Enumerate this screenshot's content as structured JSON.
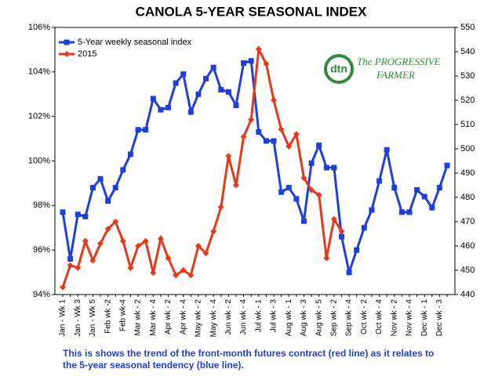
{
  "chart_data": {
    "type": "line",
    "title": "CANOLA 5-YEAR SEASONAL INDEX",
    "caption": [
      "This is shows the trend of the front-month futures contract (red line) as it relates to",
      "the 5-year seasonal tendency (blue line)."
    ],
    "logo": {
      "mark": "dtn",
      "line1": "The PROGRESSIVE",
      "line2": "FARMER"
    },
    "categories": [
      "Jan - Wk 1",
      null,
      "Jan - Wk 3",
      null,
      "Jan - Wk 5",
      null,
      "Feb wk -2",
      null,
      "Feb wk-4",
      null,
      "Mar wk - 2",
      null,
      "Mar wk - 4",
      null,
      "Apr wk - 2",
      null,
      "Apr wk - 4",
      null,
      "May wk - 2",
      null,
      "May wk - 4",
      null,
      "Jun wk - 2",
      null,
      "Jun wk - 4",
      null,
      "Jul wk - 1",
      null,
      "Jul wk - 3",
      null,
      "Aug wk - 1",
      null,
      "Aug wk - 3",
      null,
      "Aug wk - 5",
      null,
      "Sep wk - 2",
      null,
      "Sep wk - 4",
      null,
      "Oct wk - 2",
      null,
      "Oct wk - 4",
      null,
      "Nov wk - 2",
      null,
      "Nov wk - 4",
      null,
      "Dec wk - 1",
      null,
      "Dec wk - 3",
      null
    ],
    "series": [
      {
        "name": "5-Year weekly seasonal index",
        "color": "#1f3fdc",
        "marker": "square",
        "values": [
          97.7,
          95.6,
          97.6,
          97.5,
          98.8,
          99.2,
          98.2,
          98.8,
          99.6,
          100.3,
          101.4,
          101.4,
          102.8,
          102.3,
          102.4,
          103.5,
          103.9,
          102.2,
          103.0,
          103.7,
          104.2,
          103.2,
          103.1,
          102.5,
          104.4,
          104.5,
          101.3,
          100.9,
          100.9,
          98.6,
          98.8,
          98.3,
          97.3,
          99.9,
          100.7,
          99.7,
          99.7,
          96.6,
          95.0,
          96.0,
          97.0,
          97.8,
          99.1,
          100.5,
          98.8,
          97.7,
          97.7,
          98.7,
          98.4,
          97.9,
          98.8,
          99.8
        ]
      },
      {
        "name": "2015",
        "color": "#e8381c",
        "marker": "diamond",
        "axis": "y2",
        "values": [
          443,
          452,
          451,
          462,
          454,
          461,
          467,
          470,
          462,
          451,
          460,
          462,
          449,
          463,
          455,
          448,
          450,
          448,
          460,
          457,
          466,
          476,
          497,
          485,
          505,
          512,
          541,
          535,
          520,
          508,
          501,
          506,
          488,
          483,
          481,
          455,
          471,
          466,
          null,
          null,
          null,
          null,
          null,
          null,
          null,
          null,
          null,
          null,
          null,
          null,
          null,
          null
        ]
      }
    ],
    "ylim": [
      94,
      106
    ],
    "yticks": [
      {
        "value": 94,
        "label": "94%"
      },
      {
        "value": 96,
        "label": "96%"
      },
      {
        "value": 98,
        "label": "98%"
      },
      {
        "value": 100,
        "label": "100%"
      },
      {
        "value": 102,
        "label": "102%"
      },
      {
        "value": 104,
        "label": "104%"
      },
      {
        "value": 106,
        "label": "106%"
      }
    ],
    "y2lim": [
      440,
      550
    ],
    "y2ticks": [
      440,
      450,
      460,
      470,
      480,
      490,
      500,
      510,
      520,
      530,
      540,
      550
    ],
    "legend": "upper left"
  }
}
